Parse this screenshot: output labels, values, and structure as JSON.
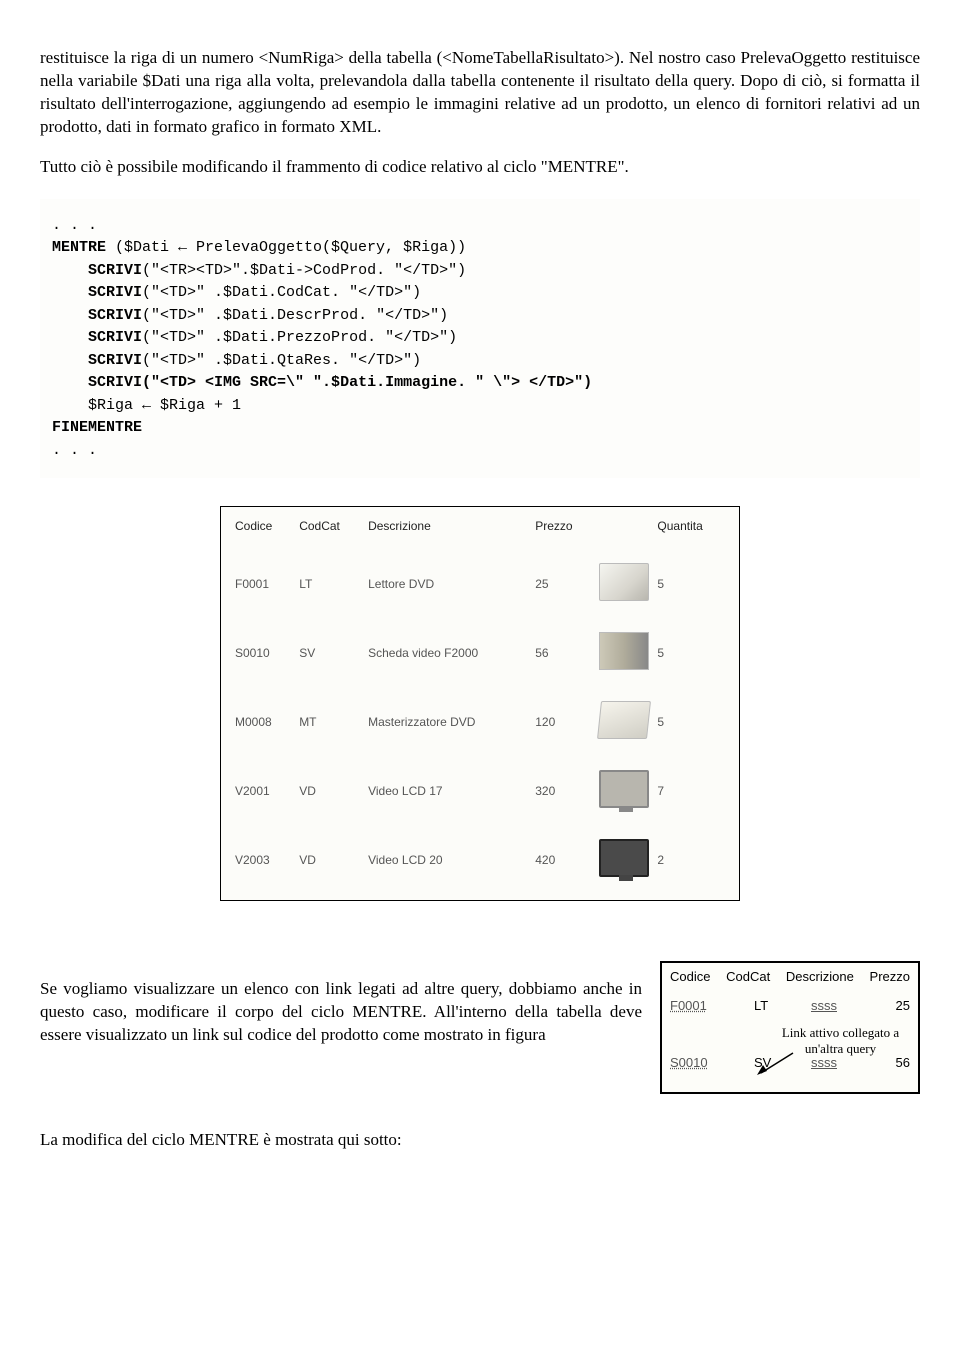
{
  "para1": "restituisce la riga di un numero <NumRiga> della tabella (<NomeTabellaRisultato>). Nel nostro caso PrelevaOggetto restituisce nella variabile $Dati una riga alla volta, prelevandola dalla tabella contenente il risultato della query. Dopo di ciò, si formatta il risultato dell'interrogazione, aggiungendo ad esempio le immagini relative ad un prodotto, un elenco di fornitori relativi ad un prodotto, dati in formato grafico in formato XML.",
  "para2": "Tutto ciò è possibile modificando il frammento di codice relativo al ciclo \"MENTRE\".",
  "code": {
    "kw_mentre": "MENTRE",
    "mentre_cond": " ($Dati ← PrelevaOggetto($Query, $Riga))",
    "kw_scrivi": "SCRIVI",
    "l1": "(\"<TR><TD>\".$Dati->CodProd. \"</TD>\")",
    "l2": "(\"<TD>\" .$Dati.CodCat. \"</TD>\")",
    "l3": "(\"<TD>\" .$Dati.DescrProd. \"</TD>\")",
    "l4": "(\"<TD>\" .$Dati.PrezzoProd. \"</TD>\")",
    "l5": "(\"<TD>\" .$Dati.QtaRes. \"</TD>\")",
    "l6": "(\"<TD> <IMG SRC=\\\" \".$Dati.Immagine. \" \\\"> </TD>\")",
    "l7": "    $Riga ← $Riga + 1",
    "kw_fine": "FINEMENTRE"
  },
  "table": {
    "headers": [
      "Codice",
      "CodCat",
      "Descrizione",
      "Prezzo",
      "",
      "Quantita"
    ],
    "rows": [
      {
        "c0": "F0001",
        "c1": "LT",
        "c2": "Lettore DVD",
        "c3": "25",
        "img": "dvd",
        "c5": "5"
      },
      {
        "c0": "S0010",
        "c1": "SV",
        "c2": "Scheda video F2000",
        "c3": "56",
        "img": "card",
        "c5": "5"
      },
      {
        "c0": "M0008",
        "c1": "MT",
        "c2": "Masterizzatore DVD",
        "c3": "120",
        "img": "master",
        "c5": "5"
      },
      {
        "c0": "V2001",
        "c1": "VD",
        "c2": "Video LCD 17",
        "c3": "320",
        "img": "mon1",
        "c5": "7"
      },
      {
        "c0": "V2003",
        "c1": "VD",
        "c2": "Video LCD 20",
        "c3": "420",
        "img": "mon2",
        "c5": "2"
      }
    ]
  },
  "para3": "Se vogliamo visualizzare un elenco con link legati ad altre query, dobbiamo anche in questo caso, modificare il corpo del ciclo MENTRE. All'interno della tabella deve essere visualizzato un link sul codice del prodotto come mostrato in figura",
  "callout": {
    "headers": [
      "Codice",
      "CodCat",
      "Descrizione",
      "Prezzo"
    ],
    "row1": {
      "c0": "F0001",
      "c1": "LT",
      "c2": "ssss",
      "c3": "25"
    },
    "label": "Link attivo collegato a un'altra query",
    "row2": {
      "c0": "S0010",
      "c1": "SV",
      "c2": "ssss",
      "c3": "56"
    }
  },
  "para4": "La modifica del ciclo MENTRE è mostrata qui sotto:"
}
